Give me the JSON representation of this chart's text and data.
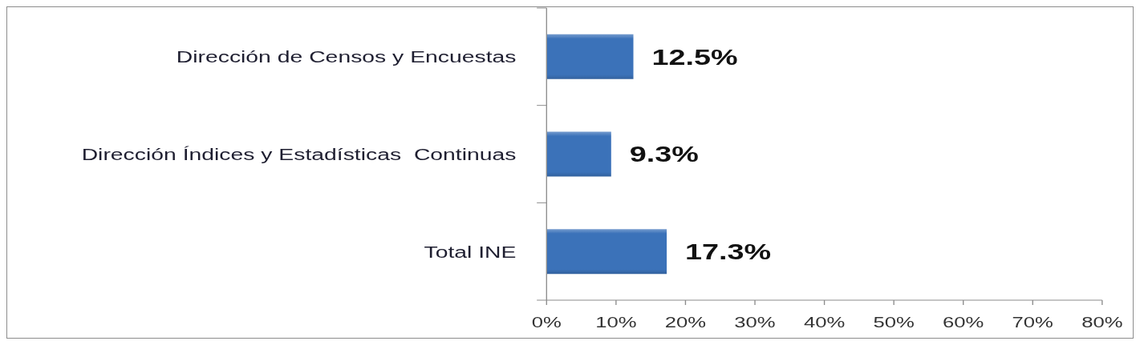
{
  "chart_data": {
    "type": "bar",
    "orientation": "horizontal",
    "categories": [
      "Dirección de Censos y Encuestas",
      "Dirección Índices y Estadísticas  Continuas",
      "Total INE"
    ],
    "values": [
      12.5,
      9.3,
      17.3
    ],
    "color": "#3b72b9",
    "value_labels": [
      "12.5%",
      "9.3%",
      "17.3%"
    ],
    "xlim": [
      0,
      80
    ],
    "xticks": [
      {
        "value": 0,
        "label": "0%"
      },
      {
        "value": 10,
        "label": "10%"
      },
      {
        "value": 20,
        "label": "20%"
      },
      {
        "value": 30,
        "label": "30%"
      },
      {
        "value": 40,
        "label": "40%"
      },
      {
        "value": 50,
        "label": "50%"
      },
      {
        "value": 60,
        "label": "60%"
      },
      {
        "value": 70,
        "label": "70%"
      },
      {
        "value": 80,
        "label": "80%"
      }
    ]
  }
}
